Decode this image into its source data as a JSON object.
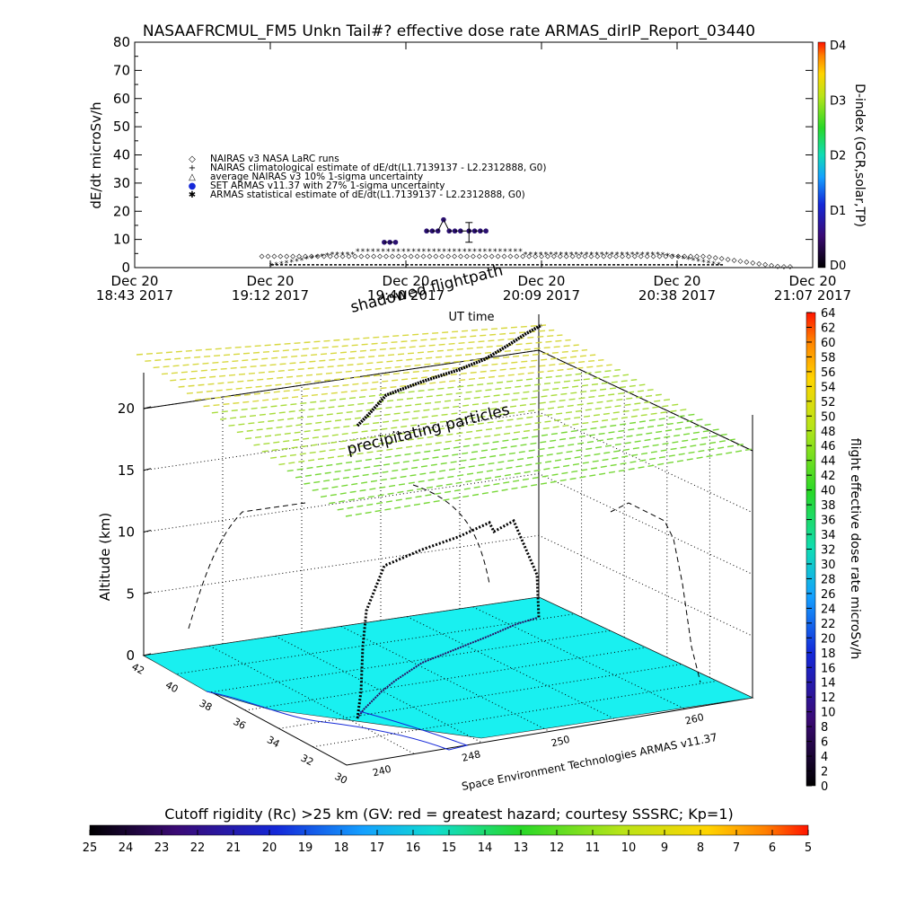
{
  "chart_data": [
    {
      "type": "scatter",
      "title": "NASAAFRCMUL_FM5 Unkn Tail#? effective dose rate ARMAS_dirIP_Report_03440",
      "ylabel": "dE/dt microSv/h",
      "xlabel": "UT time",
      "ylim": [
        0,
        80
      ],
      "yticks": [
        "0",
        "10",
        "20",
        "30",
        "40",
        "50",
        "60",
        "70",
        "80"
      ],
      "xticks": [
        {
          "top": "Dec 20",
          "bottom": "18:43 2017"
        },
        {
          "top": "Dec 20",
          "bottom": "19:12 2017"
        },
        {
          "top": "Dec 20",
          "bottom": "19:40 2017"
        },
        {
          "top": "Dec 20",
          "bottom": "20:09 2017"
        },
        {
          "top": "Dec 20",
          "bottom": "20:38 2017"
        },
        {
          "top": "Dec 20",
          "bottom": "21:07 2017"
        }
      ],
      "right_axis": {
        "label": "D-index (GCR,solar,TP)",
        "ticks": [
          "D0",
          "D1",
          "D2",
          "D3",
          "D4"
        ]
      },
      "legend": [
        {
          "symbol": "◇",
          "text": "NAIRAS v3 NASA LaRC runs"
        },
        {
          "symbol": "+",
          "text": "NAIRAS climatological estimate of dE/dt(L1.7139137 - L2.2312888, G0)"
        },
        {
          "symbol": "△",
          "text": "average NAIRAS v3 10% 1-sigma uncertainty"
        },
        {
          "symbol": "●",
          "text": "SET ARMAS v11.37 with 27% 1-sigma uncertainty"
        },
        {
          "symbol": "✱",
          "text": "ARMAS statistical estimate of dE/dt(L1.7139137 - L2.2312888, G0)"
        }
      ],
      "legend_position": "upper-left",
      "series": [
        {
          "name": "SET ARMAS v11.37 with 27% 1-sigma uncertainty",
          "x_hours": [
            19.6,
            19.62,
            19.64,
            19.75,
            19.77,
            19.79,
            19.81,
            19.83,
            19.85,
            19.87,
            19.9,
            19.92,
            19.94,
            19.96
          ],
          "values": [
            9,
            9,
            9,
            13,
            13,
            13,
            17,
            13,
            13,
            13,
            13,
            13,
            13,
            13
          ]
        },
        {
          "name": "ARMAS statistical estimate of dE/dt(L1.7139137 - L2.2312888, G0)",
          "x_range_hours": [
            19.2,
            20.8
          ],
          "plateau_value": 5,
          "center_value": 6
        },
        {
          "name": "NAIRAS v3 NASA LaRC runs",
          "x_range_hours": [
            18.9,
            21.0
          ],
          "plateau_value": 4
        }
      ]
    },
    {
      "type": "scatter",
      "title": "",
      "annotations": [
        "shadowed flightpath",
        "precipitating particles"
      ],
      "zlabel": "Altitude (km)",
      "zticks": [
        "0",
        "5",
        "10",
        "15",
        "20"
      ],
      "lat_ticks": [
        "42",
        "40",
        "38",
        "36",
        "34",
        "32",
        "30"
      ],
      "lon_ticks": [
        "240",
        "248",
        "250",
        "260"
      ],
      "credit": "Space Environment Technologies ARMAS v11.37",
      "colorbar_right": {
        "label": "flight effective dose rate microSv/h",
        "ticks": [
          "0",
          "2",
          "4",
          "6",
          "8",
          "10",
          "12",
          "14",
          "16",
          "18",
          "20",
          "22",
          "24",
          "26",
          "28",
          "30",
          "32",
          "34",
          "36",
          "38",
          "40",
          "42",
          "44",
          "46",
          "48",
          "50",
          "52",
          "54",
          "56",
          "58",
          "60",
          "62",
          "64"
        ]
      },
      "colorbar_bottom": {
        "label": "Cutoff rigidity (Rc) >25 km (GV: red = greatest hazard; courtesy SSSRC; Kp=1)",
        "ticks": [
          "25",
          "24",
          "23",
          "22",
          "21",
          "20",
          "19",
          "18",
          "17",
          "16",
          "15",
          "14",
          "13",
          "12",
          "11",
          "10",
          "9",
          "8",
          "7",
          "6",
          "5"
        ]
      },
      "colors": {
        "ground_map": "#19f0f0",
        "precipitating_particles": "#b4dc3c",
        "flight_track": "#2a1066"
      }
    }
  ]
}
